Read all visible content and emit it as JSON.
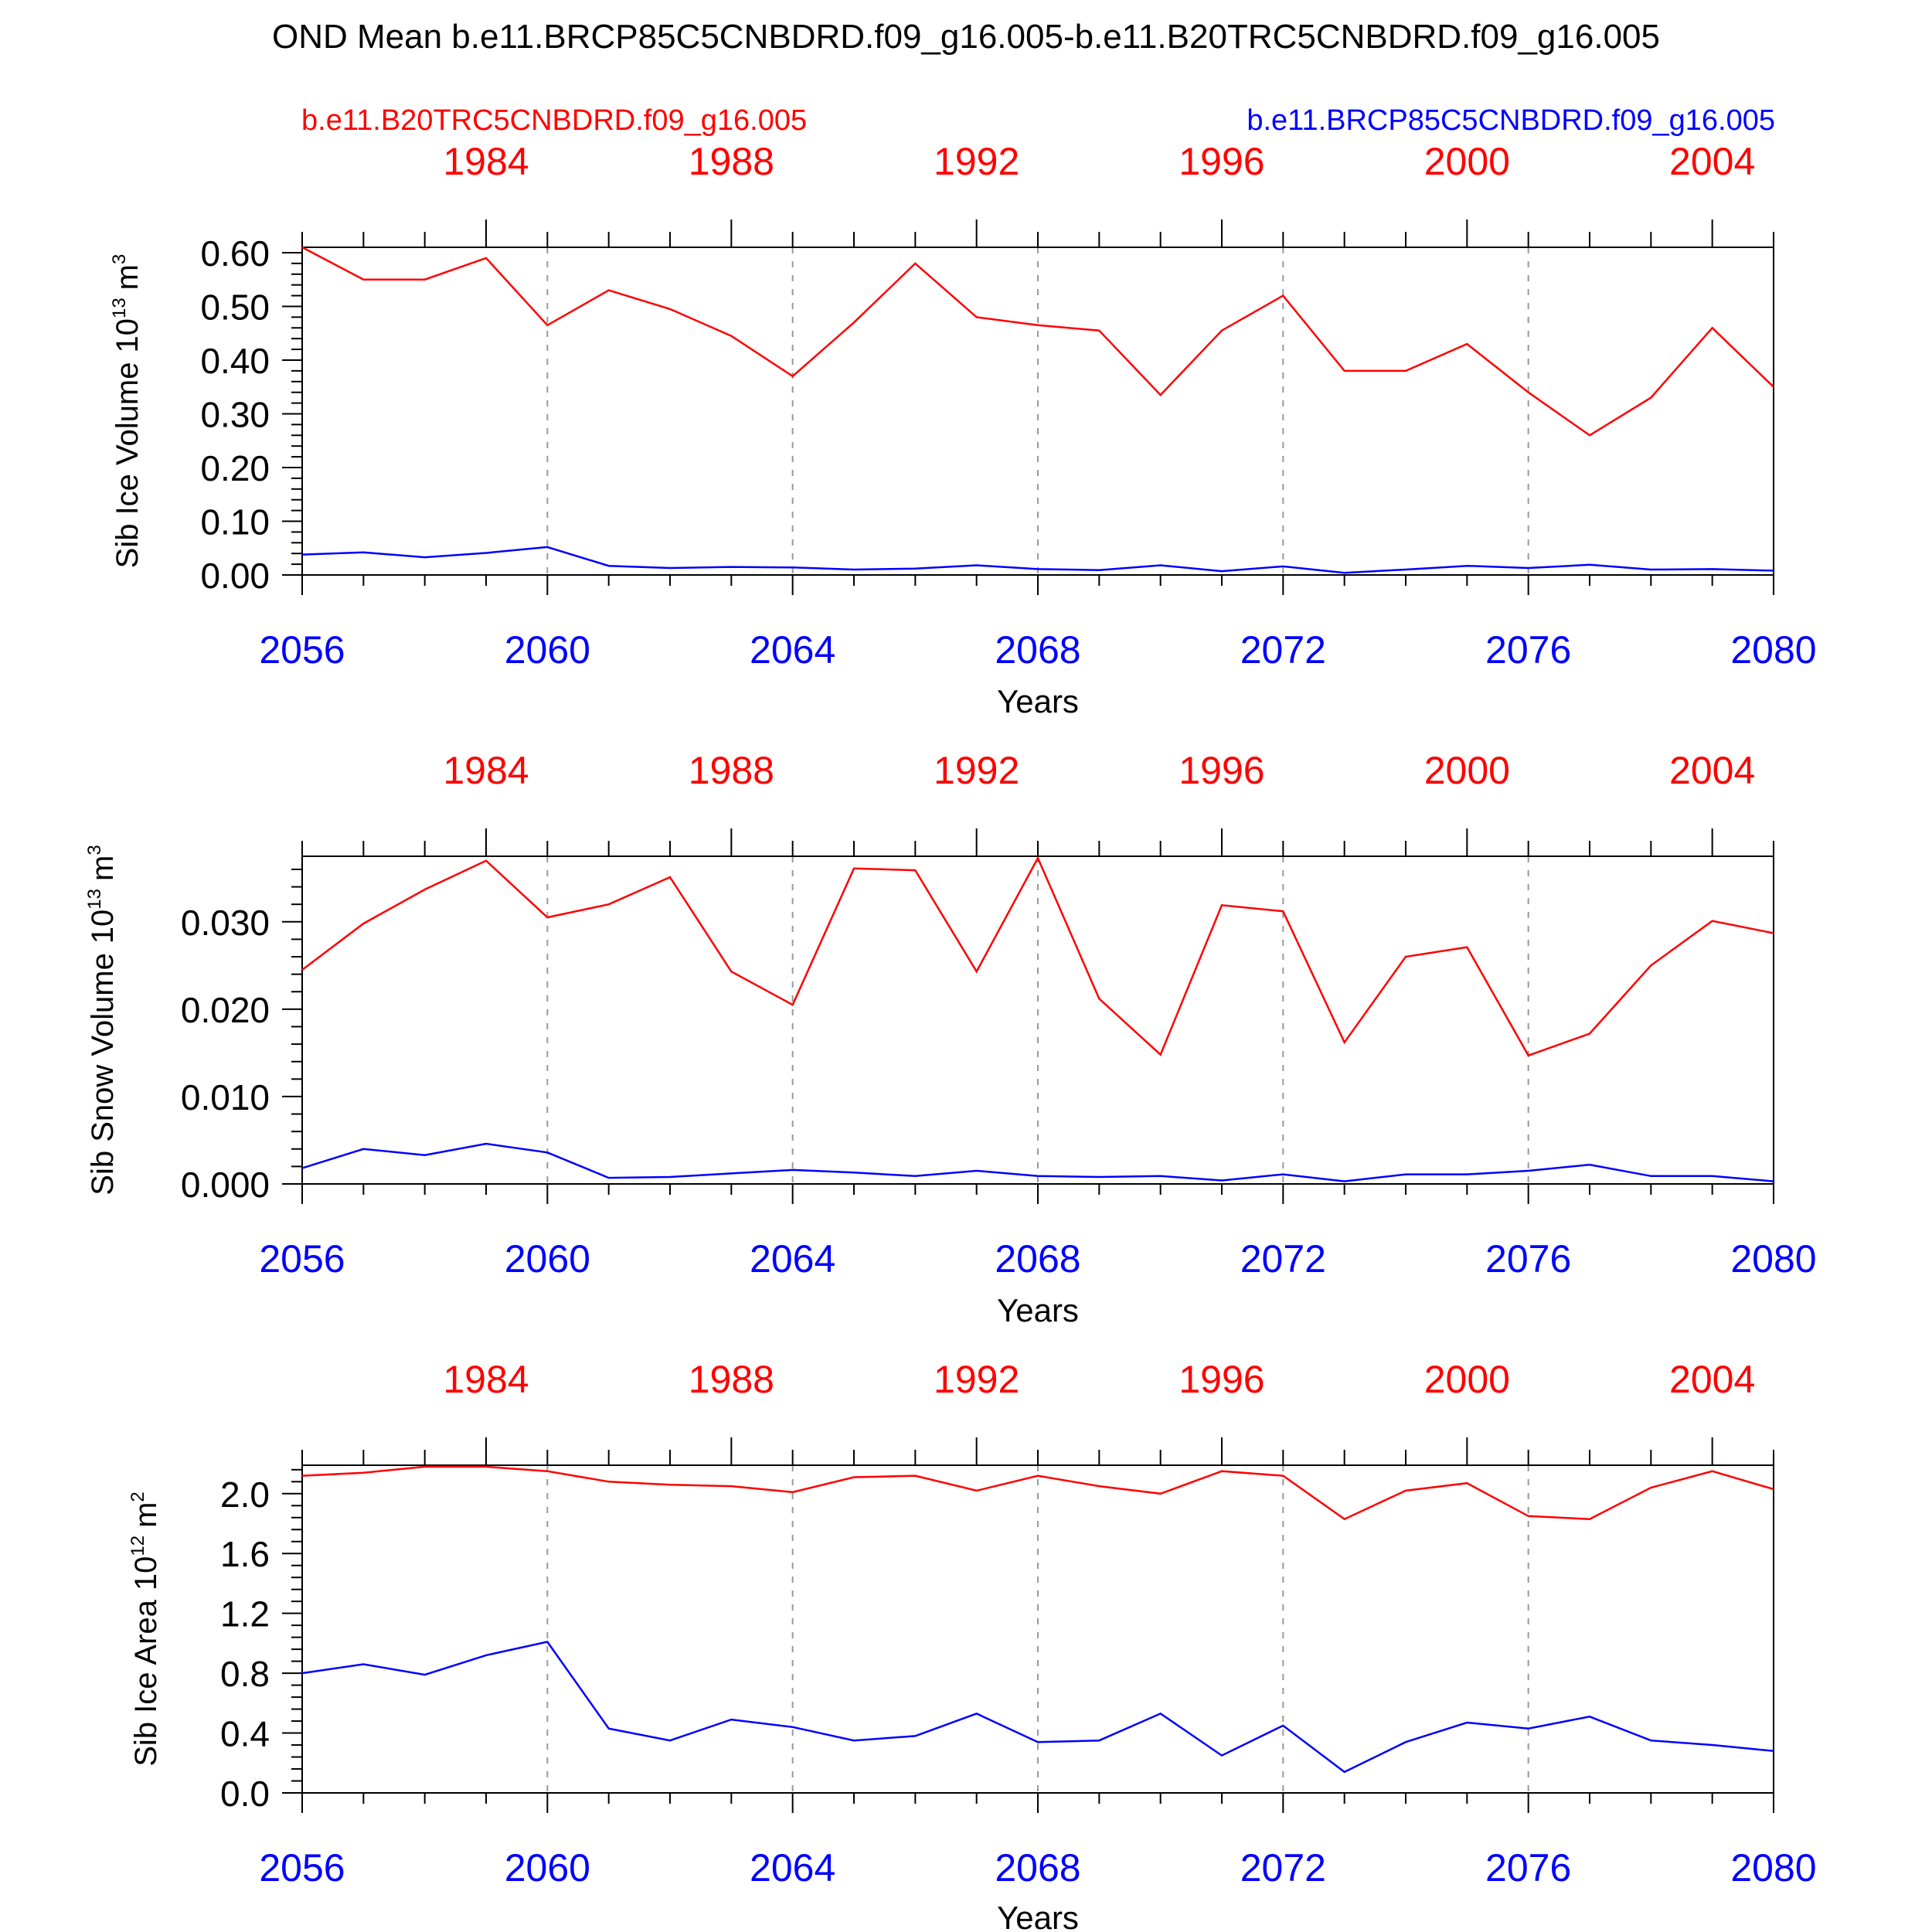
{
  "figure": {
    "title": "OND Mean b.e11.BRCP85C5CNBDRD.f09_g16.005-b.e11.B20TRC5CNBDRD.f09_g16.005",
    "legend_left": "b.e11.B20TRC5CNBDRD.f09_g16.005",
    "legend_right": "b.e11.BRCP85C5CNBDRD.f09_g16.005",
    "colors": {
      "historical": "#ff0000",
      "future": "#0000ff",
      "axis": "#000000",
      "grid": "#999999"
    }
  },
  "chart_data": [
    {
      "type": "line",
      "ylabel": "Sib Ice Volume",
      "yunit_base": "10",
      "yunit_exp": "13",
      "yunit_sym": "m",
      "yunit_symexp": "3",
      "xlabel": "Years",
      "x_bottom": [
        2056,
        2057,
        2058,
        2059,
        2060,
        2061,
        2062,
        2063,
        2064,
        2065,
        2066,
        2067,
        2068,
        2069,
        2070,
        2071,
        2072,
        2073,
        2074,
        2075,
        2076,
        2077,
        2078,
        2079,
        2080
      ],
      "x_top": [
        1981,
        1982,
        1983,
        1984,
        1985,
        1986,
        1987,
        1988,
        1989,
        1990,
        1991,
        1992,
        1993,
        1994,
        1995,
        1996,
        1997,
        1998,
        1999,
        2000,
        2001,
        2002,
        2003,
        2004,
        2005
      ],
      "xlim": [
        2056,
        2080
      ],
      "x_bottom_ticks": [
        "2056",
        "2060",
        "2064",
        "2068",
        "2072",
        "2076",
        "2080"
      ],
      "x_top_ticks": [
        "1984",
        "1988",
        "1992",
        "1996",
        "2000",
        "2004"
      ],
      "ylim": [
        0,
        0.61
      ],
      "yticks": [
        0,
        0.1,
        0.2,
        0.3,
        0.4,
        0.5,
        0.6
      ],
      "ytick_labels": [
        "0.00",
        "0.10",
        "0.20",
        "0.30",
        "0.40",
        "0.50",
        "0.60"
      ],
      "yminor_step": 0.02,
      "series": [
        {
          "name": "b.e11.B20TRC5CNBDRD.f09_g16.005",
          "color": "#ff0000",
          "values": [
            0.61,
            0.55,
            0.55,
            0.59,
            0.465,
            0.53,
            0.495,
            0.445,
            0.37,
            0.47,
            0.58,
            0.48,
            0.465,
            0.455,
            0.335,
            0.455,
            0.52,
            0.38,
            0.38,
            0.43,
            0.34,
            0.26,
            0.33,
            0.46,
            0.35
          ]
        },
        {
          "name": "b.e11.BRCP85C5CNBDRD.f09_g16.005",
          "color": "#0000ff",
          "values": [
            0.038,
            0.042,
            0.033,
            0.041,
            0.052,
            0.017,
            0.013,
            0.015,
            0.014,
            0.01,
            0.012,
            0.018,
            0.011,
            0.009,
            0.018,
            0.007,
            0.016,
            0.004,
            0.01,
            0.017,
            0.013,
            0.019,
            0.01,
            0.011,
            0.008
          ]
        }
      ]
    },
    {
      "type": "line",
      "ylabel": "Sib Snow Volume",
      "yunit_base": "10",
      "yunit_exp": "13",
      "yunit_sym": "m",
      "yunit_symexp": "3",
      "xlabel": "Years",
      "x_bottom": [
        2056,
        2057,
        2058,
        2059,
        2060,
        2061,
        2062,
        2063,
        2064,
        2065,
        2066,
        2067,
        2068,
        2069,
        2070,
        2071,
        2072,
        2073,
        2074,
        2075,
        2076,
        2077,
        2078,
        2079,
        2080
      ],
      "x_top": [
        1981,
        1982,
        1983,
        1984,
        1985,
        1986,
        1987,
        1988,
        1989,
        1990,
        1991,
        1992,
        1993,
        1994,
        1995,
        1996,
        1997,
        1998,
        1999,
        2000,
        2001,
        2002,
        2003,
        2004,
        2005
      ],
      "xlim": [
        2056,
        2080
      ],
      "x_bottom_ticks": [
        "2056",
        "2060",
        "2064",
        "2068",
        "2072",
        "2076",
        "2080"
      ],
      "x_top_ticks": [
        "1984",
        "1988",
        "1992",
        "1996",
        "2000",
        "2004"
      ],
      "ylim": [
        0,
        0.0375
      ],
      "yticks": [
        0,
        0.01,
        0.02,
        0.03
      ],
      "ytick_labels": [
        "0.000",
        "0.010",
        "0.020",
        "0.030"
      ],
      "yminor_step": 0.002,
      "series": [
        {
          "name": "b.e11.B20TRC5CNBDRD.f09_g16.005",
          "color": "#ff0000",
          "values": [
            0.0245,
            0.0298,
            0.0337,
            0.037,
            0.0305,
            0.032,
            0.0351,
            0.0243,
            0.0205,
            0.0361,
            0.0359,
            0.0243,
            0.0373,
            0.0212,
            0.0148,
            0.0319,
            0.0312,
            0.0162,
            0.026,
            0.0271,
            0.0147,
            0.0172,
            0.025,
            0.0301,
            0.0287
          ]
        },
        {
          "name": "b.e11.BRCP85C5CNBDRD.f09_g16.005",
          "color": "#0000ff",
          "values": [
            0.0018,
            0.004,
            0.0033,
            0.0046,
            0.0036,
            0.0007,
            0.0008,
            0.0012,
            0.0016,
            0.0013,
            0.0009,
            0.0015,
            0.0009,
            0.0008,
            0.0009,
            0.0004,
            0.0011,
            0.0003,
            0.0011,
            0.0011,
            0.0015,
            0.0022,
            0.0009,
            0.0009,
            0.0003
          ]
        }
      ]
    },
    {
      "type": "line",
      "ylabel": "Sib Ice Area",
      "yunit_base": "10",
      "yunit_exp": "12",
      "yunit_sym": "m",
      "yunit_symexp": "2",
      "xlabel": "Years",
      "x_bottom": [
        2056,
        2057,
        2058,
        2059,
        2060,
        2061,
        2062,
        2063,
        2064,
        2065,
        2066,
        2067,
        2068,
        2069,
        2070,
        2071,
        2072,
        2073,
        2074,
        2075,
        2076,
        2077,
        2078,
        2079,
        2080
      ],
      "x_top": [
        1981,
        1982,
        1983,
        1984,
        1985,
        1986,
        1987,
        1988,
        1989,
        1990,
        1991,
        1992,
        1993,
        1994,
        1995,
        1996,
        1997,
        1998,
        1999,
        2000,
        2001,
        2002,
        2003,
        2004,
        2005
      ],
      "xlim": [
        2056,
        2080
      ],
      "x_bottom_ticks": [
        "2056",
        "2060",
        "2064",
        "2068",
        "2072",
        "2076",
        "2080"
      ],
      "x_top_ticks": [
        "1984",
        "1988",
        "1992",
        "1996",
        "2000",
        "2004"
      ],
      "ylim": [
        0,
        2.19
      ],
      "yticks": [
        0,
        0.4,
        0.8,
        1.2,
        1.6,
        2.0
      ],
      "ytick_labels": [
        "0.0",
        "0.4",
        "0.8",
        "1.2",
        "1.6",
        "2.0"
      ],
      "yminor_step": 0.08,
      "series": [
        {
          "name": "b.e11.B20TRC5CNBDRD.f09_g16.005",
          "color": "#ff0000",
          "values": [
            2.12,
            2.14,
            2.18,
            2.18,
            2.15,
            2.08,
            2.06,
            2.05,
            2.01,
            2.11,
            2.12,
            2.02,
            2.12,
            2.05,
            2.0,
            2.15,
            2.12,
            1.83,
            2.02,
            2.07,
            1.85,
            1.83,
            2.04,
            2.15,
            2.03
          ]
        },
        {
          "name": "b.e11.BRCP85C5CNBDRD.f09_g16.005",
          "color": "#0000ff",
          "values": [
            0.8,
            0.86,
            0.79,
            0.92,
            1.01,
            0.43,
            0.35,
            0.49,
            0.44,
            0.35,
            0.38,
            0.53,
            0.34,
            0.35,
            0.53,
            0.25,
            0.45,
            0.14,
            0.34,
            0.47,
            0.43,
            0.51,
            0.35,
            0.32,
            0.28
          ]
        }
      ]
    }
  ]
}
